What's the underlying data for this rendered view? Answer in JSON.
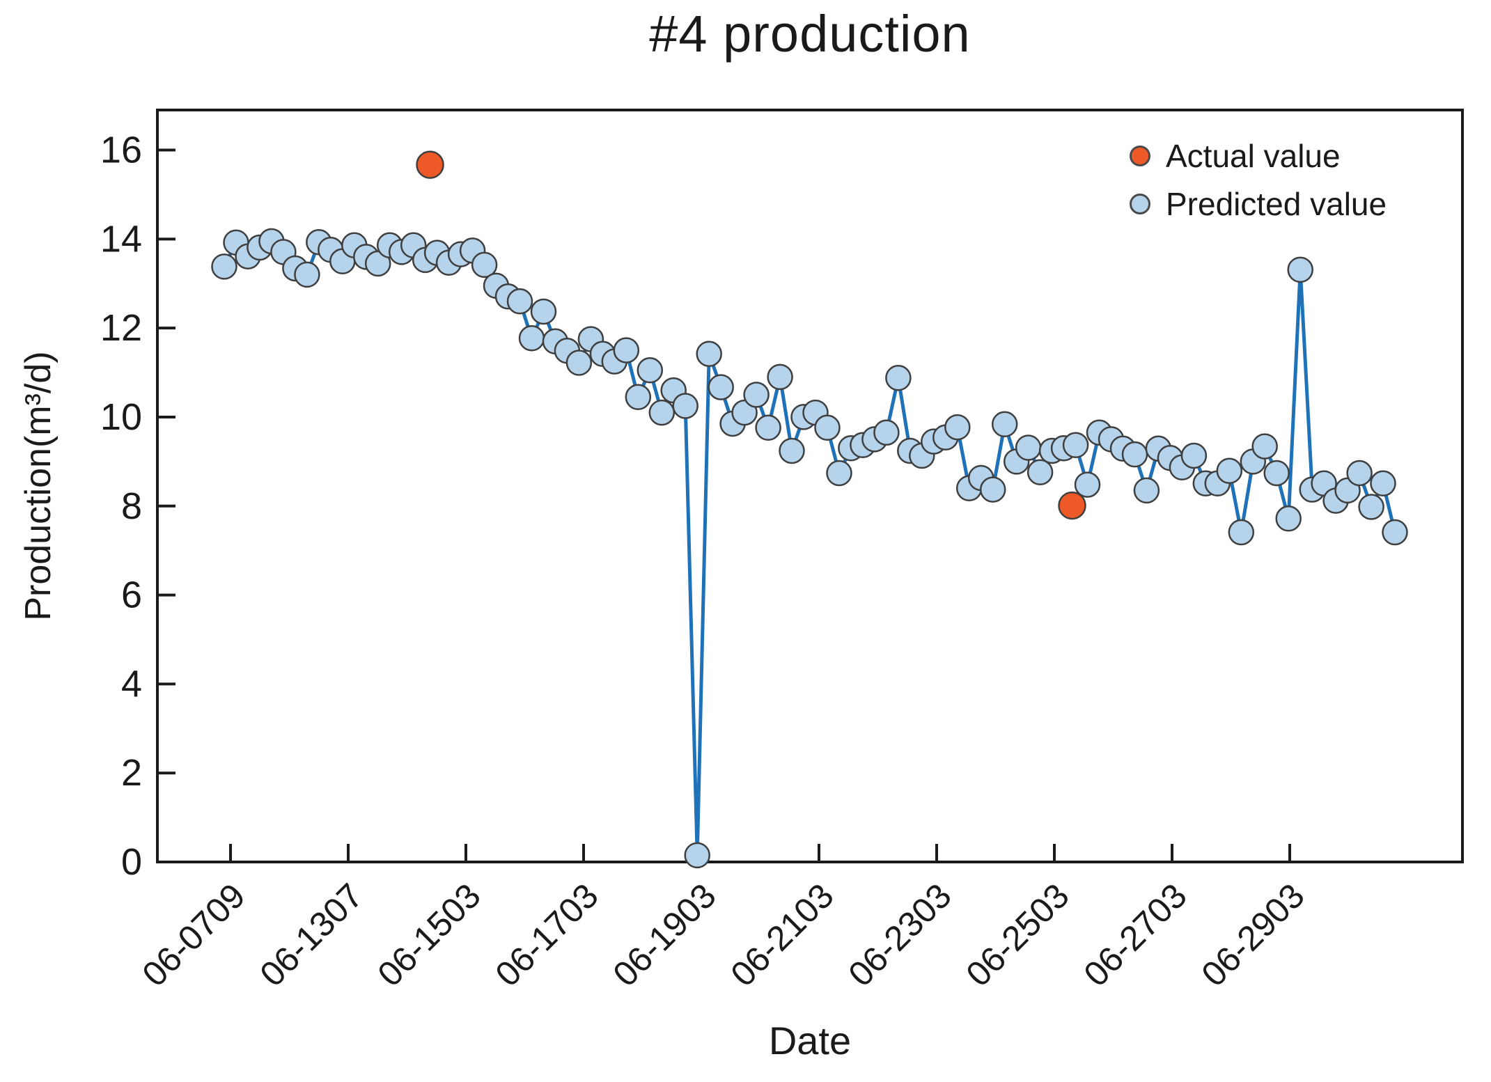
{
  "chart_data": {
    "type": "line",
    "title": "#4 production",
    "xlabel": "Date",
    "ylabel": "Production(m³/d)",
    "ylim": [
      0,
      16.9
    ],
    "y_ticks": [
      0,
      2,
      4,
      6,
      8,
      10,
      12,
      14,
      16
    ],
    "x_tick_labels": [
      "06-0709",
      "06-1307",
      "06-1503",
      "06-1703",
      "06-1903",
      "06-2103",
      "06-2303",
      "06-2503",
      "06-2703",
      "06-2903"
    ],
    "grid": false,
    "legend_position": "upper right",
    "axis_color": "#1a1a1a",
    "series": [
      {
        "name": "Actual value",
        "type": "scatter",
        "color": "#ed5a28",
        "edge_color": "#3f3f3f",
        "points": [
          {
            "x_index": 17.4,
            "value": 15.67
          },
          {
            "x_index": 71.7,
            "value": 8.01
          }
        ]
      },
      {
        "name": "Predicted value",
        "type": "line+marker",
        "line_color": "#1f72b8",
        "marker_color": "#b5d4ec",
        "edge_color": "#3f3f3f",
        "values": [
          13.38,
          13.92,
          13.61,
          13.81,
          13.95,
          13.71,
          13.34,
          13.2,
          13.93,
          13.76,
          13.5,
          13.86,
          13.6,
          13.45,
          13.86,
          13.71,
          13.86,
          13.53,
          13.69,
          13.47,
          13.66,
          13.74,
          13.42,
          12.95,
          12.71,
          12.6,
          11.77,
          12.37,
          11.7,
          11.49,
          11.22,
          11.75,
          11.42,
          11.25,
          11.5,
          10.45,
          11.05,
          10.1,
          10.6,
          10.25,
          0.15,
          11.42,
          10.67,
          9.85,
          10.1,
          10.5,
          9.76,
          10.9,
          9.24,
          10.0,
          10.1,
          9.76,
          8.74,
          9.3,
          9.37,
          9.5,
          9.65,
          10.88,
          9.24,
          9.13,
          9.45,
          9.54,
          9.77,
          8.4,
          8.63,
          8.37,
          9.84,
          9.0,
          9.31,
          8.76,
          9.24,
          9.3,
          9.37,
          8.48,
          9.65,
          9.5,
          9.29,
          9.16,
          8.35,
          9.29,
          9.08,
          8.87,
          9.13,
          8.51,
          8.51,
          8.79,
          7.41,
          9.0,
          9.34,
          8.74,
          7.72,
          13.31,
          8.37,
          8.51,
          8.12,
          8.35,
          8.74,
          7.98,
          8.51,
          7.41
        ]
      }
    ]
  }
}
